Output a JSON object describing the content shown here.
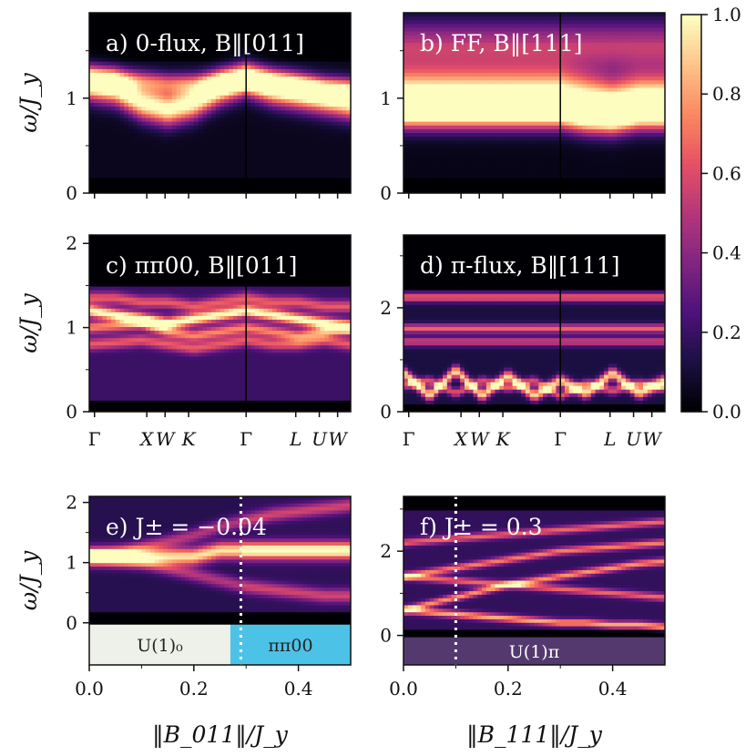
{
  "colormap": {
    "name": "magma",
    "stops": [
      "#000004",
      "#1c1044",
      "#4f127b",
      "#812581",
      "#b5367a",
      "#e55064",
      "#fb8761",
      "#fec287",
      "#fcfdbf"
    ],
    "ticks": [
      "0.0",
      "0.2",
      "0.4",
      "0.6",
      "0.8",
      "1.0"
    ],
    "range": [
      0,
      1
    ]
  },
  "axis_labels": {
    "y": "ω/J_y",
    "x_left": "‖B_011‖/J_y",
    "x_right": "‖B_111‖/J_y"
  },
  "chart_data": [
    {
      "id": "a",
      "type": "heatmap",
      "title": "a) 0-flux, B‖[011]",
      "ylabel": "ω/J_y",
      "ylim": [
        0,
        1.9
      ],
      "yticks": [
        "0",
        "1"
      ],
      "path_labels": [
        "Γ",
        "X",
        "W",
        "K",
        "Γ",
        "L",
        "U",
        "W"
      ],
      "bands": [
        {
          "y": [
            1.15,
            1.1,
            0.95,
            0.88,
            0.95,
            1.1,
            1.2,
            1.1,
            1.05,
            1.0,
            0.95
          ],
          "width": 0.12,
          "amp": 1.0
        },
        {
          "y": [
            1.2,
            1.2,
            1.18,
            1.15,
            1.15,
            1.18,
            1.2,
            1.18,
            1.15,
            1.1,
            1.1
          ],
          "width": 0.08,
          "amp": 0.6
        }
      ],
      "background": 0.05
    },
    {
      "id": "b",
      "type": "heatmap",
      "title": "b) FF, B‖[111]",
      "ylabel": "",
      "ylim": [
        0,
        1.9
      ],
      "yticks": [
        "0",
        "1"
      ],
      "path_labels": [
        "Γ",
        "X",
        "W",
        "K",
        "Γ",
        "L",
        "U",
        "W"
      ],
      "bands": [
        {
          "y": [
            1.05,
            1.05,
            1.05,
            1.05,
            1.05,
            1.05,
            1.05,
            1.0,
            0.95,
            1.0,
            1.0
          ],
          "width": 0.18,
          "amp": 0.95
        },
        {
          "y": [
            0.85,
            0.85,
            0.85,
            0.85,
            0.85,
            0.85,
            0.85,
            0.8,
            0.8,
            0.85,
            0.85
          ],
          "width": 0.12,
          "amp": 0.85
        },
        {
          "y": [
            1.55,
            1.55,
            1.55,
            1.55,
            1.55,
            1.55,
            1.55,
            1.55,
            1.55,
            1.55,
            1.55
          ],
          "width": 0.2,
          "amp": 0.5
        }
      ],
      "background": 0.04
    },
    {
      "id": "c",
      "type": "heatmap",
      "title": "c) ππ00, B‖[011]",
      "ylabel": "ω/J_y",
      "ylim": [
        0,
        2.1
      ],
      "yticks": [
        "0",
        "1",
        "2"
      ],
      "path_labels": [
        "Γ",
        "X",
        "W",
        "K",
        "Γ",
        "L",
        "U",
        "W"
      ],
      "xtick_labels": [
        "Γ",
        "X",
        "W",
        "K",
        "Γ",
        "L",
        "U",
        "W"
      ],
      "bands": [
        {
          "y": [
            1.2,
            1.15,
            1.1,
            1.05,
            1.1,
            1.15,
            1.2,
            1.15,
            1.1,
            1.05,
            1.0
          ],
          "width": 0.05,
          "amp": 0.85
        },
        {
          "y": [
            1.0,
            1.02,
            1.05,
            0.95,
            0.9,
            0.95,
            1.0,
            0.95,
            0.9,
            0.95,
            1.0
          ],
          "width": 0.05,
          "amp": 0.55
        },
        {
          "y": [
            0.8,
            0.82,
            0.85,
            0.8,
            0.75,
            0.8,
            0.85,
            0.8,
            0.8,
            0.85,
            0.8
          ],
          "width": 0.05,
          "amp": 0.45
        },
        {
          "y": [
            1.35,
            1.35,
            1.3,
            1.3,
            1.25,
            1.3,
            1.35,
            1.3,
            1.3,
            1.25,
            1.25
          ],
          "width": 0.05,
          "amp": 0.45
        }
      ],
      "background": 0.2
    },
    {
      "id": "d",
      "type": "heatmap",
      "title": "d) π-flux, B‖[111]",
      "ylabel": "",
      "ylim": [
        0,
        3.4
      ],
      "yticks": [
        "0",
        "2"
      ],
      "path_labels": [
        "Γ",
        "X",
        "W",
        "K",
        "Γ",
        "L",
        "U",
        "W"
      ],
      "xtick_labels": [
        "Γ",
        "X",
        "W",
        "K",
        "Γ",
        "L",
        "U",
        "W"
      ],
      "bands": [
        {
          "y": [
            2.2,
            2.2,
            2.2,
            2.2,
            2.2,
            2.2,
            2.2,
            2.2,
            2.2,
            2.2,
            2.2
          ],
          "width": 0.06,
          "amp": 0.55
        },
        {
          "y": [
            1.6,
            1.6,
            1.6,
            1.6,
            1.6,
            1.6,
            1.6,
            1.6,
            1.6,
            1.6,
            1.6
          ],
          "width": 0.06,
          "amp": 0.55
        },
        {
          "y": [
            1.35,
            1.35,
            1.35,
            1.35,
            1.35,
            1.35,
            1.35,
            1.35,
            1.35,
            1.35,
            1.35
          ],
          "width": 0.06,
          "amp": 0.45
        },
        {
          "y": [
            0.75,
            0.3,
            0.8,
            0.3,
            0.7,
            0.3,
            0.6,
            0.35,
            0.75,
            0.35,
            0.6
          ],
          "width": 0.08,
          "amp": 0.8
        },
        {
          "y": [
            0.5,
            0.6,
            0.35,
            0.6,
            0.45,
            0.6,
            0.3,
            0.55,
            0.4,
            0.55,
            0.45
          ],
          "width": 0.06,
          "amp": 0.5
        }
      ],
      "background": 0.12
    },
    {
      "id": "e",
      "type": "heatmap",
      "title": "e)  J± = −0.04",
      "ylabel": "ω/J_y",
      "ylim": [
        -0.7,
        2.1
      ],
      "yticks": [
        "0",
        "1",
        "2"
      ],
      "xlim": [
        0,
        0.5
      ],
      "xticks": [
        "0.0",
        "0.2",
        "0.4"
      ],
      "xlabel": "‖B_011‖/J_y",
      "transition_x": 0.29,
      "phases": [
        {
          "label": "U(1)₀",
          "from": 0.0,
          "to": 0.27,
          "color": "#eef0ea",
          "text_color": "#222222"
        },
        {
          "label": "ππ00",
          "from": 0.27,
          "to": 0.5,
          "color": "#4cc3e6",
          "text_color": "#222222"
        }
      ],
      "bands": [
        {
          "y": [
            1.1,
            1.15,
            1.25,
            1.35,
            1.45,
            1.6,
            1.7,
            1.8,
            1.85,
            1.9,
            1.95
          ],
          "width": 0.08,
          "amp": 0.35
        },
        {
          "y": [
            1.1,
            1.05,
            1.0,
            0.9,
            0.8,
            0.7,
            0.6,
            0.55,
            0.5,
            0.45,
            0.45
          ],
          "width": 0.08,
          "amp": 0.35
        },
        {
          "y": [
            1.1,
            1.1,
            1.1,
            1.1,
            1.1,
            1.2,
            1.2,
            1.2,
            1.2,
            1.2,
            1.2
          ],
          "width": 0.1,
          "amp": 0.8
        }
      ],
      "background": 0.15
    },
    {
      "id": "f",
      "type": "heatmap",
      "title": "f)  J± = 0.3",
      "ylabel": "",
      "ylim": [
        -0.7,
        3.3
      ],
      "yticks": [
        "0",
        "2"
      ],
      "xlim": [
        0,
        0.5
      ],
      "xticks": [
        "0.0",
        "0.2",
        "0.4"
      ],
      "xlabel": "‖B_111‖/J_y",
      "transition_x": 0.1,
      "phases": [
        {
          "label": "U(1)π",
          "from": 0.0,
          "to": 0.5,
          "color": "#54396f",
          "text_color": "#ffffff"
        }
      ],
      "bands": [
        {
          "y": [
            2.2,
            2.25,
            2.3,
            2.35,
            2.4,
            2.45,
            2.5,
            2.55,
            2.6,
            2.65,
            2.7
          ],
          "width": 0.06,
          "amp": 0.5
        },
        {
          "y": [
            1.4,
            1.5,
            1.6,
            1.7,
            1.8,
            1.9,
            2.0,
            2.05,
            2.1,
            2.15,
            2.2
          ],
          "width": 0.06,
          "amp": 0.55
        },
        {
          "y": [
            1.4,
            1.35,
            1.3,
            1.25,
            1.2,
            1.15,
            1.1,
            1.05,
            1.0,
            0.95,
            0.9
          ],
          "width": 0.06,
          "amp": 0.5
        },
        {
          "y": [
            0.6,
            0.75,
            0.9,
            1.05,
            1.2,
            1.3,
            1.4,
            1.5,
            1.6,
            1.7,
            1.75
          ],
          "width": 0.06,
          "amp": 0.6
        },
        {
          "y": [
            0.6,
            0.55,
            0.5,
            0.45,
            0.4,
            0.35,
            0.3,
            0.3,
            0.25,
            0.25,
            0.2
          ],
          "width": 0.06,
          "amp": 0.65
        }
      ],
      "background": 0.18
    }
  ]
}
